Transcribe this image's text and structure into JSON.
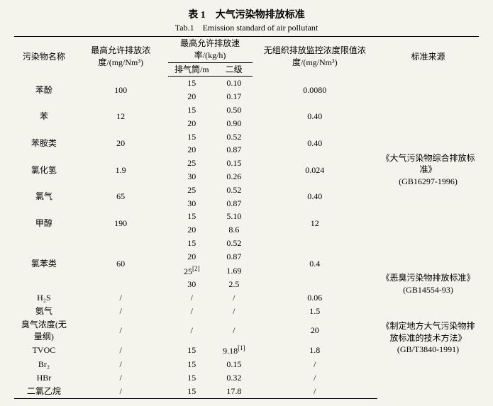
{
  "title_cn": "表 1　大气污染物排放标准",
  "title_en": "Tab.1　Emission standard of air pollutant",
  "headers": {
    "pollutant": "污染物名称",
    "max_conc": "最高允许排放浓度/(mg/Nm³)",
    "max_rate": "最高允许排放速率/(kg/h)",
    "stack": "排气筒/m",
    "level2": "二级",
    "unorganized": "无组织排放监控浓度限值浓度/(mg/Nm³)",
    "source": "标准来源"
  },
  "rows": [
    {
      "pollutant": "苯酚",
      "conc": "100",
      "stack": [
        "15",
        "20"
      ],
      "lvl2": [
        "0.10",
        "0.17"
      ],
      "unorg": "0.0080",
      "src": ""
    },
    {
      "pollutant": "苯",
      "conc": "12",
      "stack": [
        "15",
        "20"
      ],
      "lvl2": [
        "0.50",
        "0.90"
      ],
      "unorg": "0.40",
      "src": ""
    },
    {
      "pollutant": "苯胺类",
      "conc": "20",
      "stack": [
        "15",
        "20"
      ],
      "lvl2": [
        "0.52",
        "0.87"
      ],
      "unorg": "0.40",
      "src": ""
    },
    {
      "pollutant": "氯化氢",
      "conc": "1.9",
      "stack": [
        "25",
        "30"
      ],
      "lvl2": [
        "0.15",
        "0.26"
      ],
      "unorg": "0.024",
      "src": "《大气污染物综合排放标准》(GB16297-1996)"
    },
    {
      "pollutant": "氯气",
      "conc": "65",
      "stack": [
        "25",
        "30"
      ],
      "lvl2": [
        "0.52",
        "0.87"
      ],
      "unorg": "0.40",
      "src": ""
    },
    {
      "pollutant": "甲醇",
      "conc": "190",
      "stack": [
        "15",
        "20"
      ],
      "lvl2": [
        "5.10",
        "8.6"
      ],
      "unorg": "12",
      "src": ""
    },
    {
      "pollutant": "氯苯类",
      "conc": "60",
      "stack": [
        "15",
        "20",
        "25",
        "30"
      ],
      "sup": [
        "",
        "",
        "[2]",
        ""
      ],
      "lvl2": [
        "0.52",
        "0.87",
        "1.69",
        "2.5"
      ],
      "unorg": "0.4",
      "src": ""
    },
    {
      "pollutant": "H₂S",
      "conc": "/",
      "stack": [
        "/"
      ],
      "lvl2": [
        "/"
      ],
      "unorg": "0.06",
      "src": ""
    },
    {
      "pollutant": "氨气",
      "conc": "/",
      "stack": [
        "/"
      ],
      "lvl2": [
        "/"
      ],
      "unorg": "1.5",
      "src": "《恶臭污染物排放标准》(GB14554-93)"
    },
    {
      "pollutant": "臭气浓度(无量纲)",
      "conc": "/",
      "stack": [
        "/"
      ],
      "lvl2": [
        "/"
      ],
      "unorg": "20",
      "src": ""
    },
    {
      "pollutant": "TVOC",
      "conc": "/",
      "stack": [
        "15"
      ],
      "lvl2": [
        "9.18"
      ],
      "sup2": [
        "[1]"
      ],
      "unorg": "1.8",
      "src": ""
    },
    {
      "pollutant": "Br₂",
      "conc": "/",
      "stack": [
        "15"
      ],
      "lvl2": [
        "0.15"
      ],
      "unorg": "/",
      "src": "《制定地方大气污染物排放标准的技术方法》(GB/T3840-1991)"
    },
    {
      "pollutant": "HBr",
      "conc": "/",
      "stack": [
        "15"
      ],
      "lvl2": [
        "0.32"
      ],
      "unorg": "/",
      "src": ""
    },
    {
      "pollutant": "二氯乙烷",
      "conc": "/",
      "stack": [
        "15"
      ],
      "lvl2": [
        "17.8"
      ],
      "unorg": "/",
      "src": ""
    }
  ],
  "source_blocks": [
    {
      "from": 0,
      "span": 14,
      "text_l1": "《大气污染物综合排放标准》",
      "text_l2": "(GB16297-1996)"
    },
    {
      "from": 14,
      "span": 3,
      "text_l1": "《恶臭污染物排放标准》",
      "text_l2": "(GB14554-93)"
    },
    {
      "from": 17,
      "span": 4,
      "text_l1": "《制定地方大气污染物排放标准的技术方法》",
      "text_l2": "(GB/T3840-1991)"
    }
  ],
  "colors": {
    "bg": "#f5f4ec",
    "text": "#000000",
    "border": "#000000"
  }
}
